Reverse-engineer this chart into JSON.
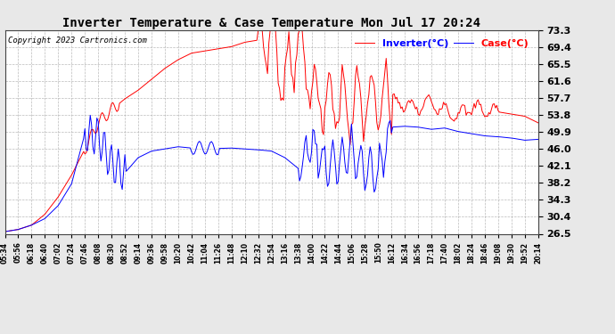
{
  "title": "Inverter Temperature & Case Temperature Mon Jul 17 20:24",
  "copyright": "Copyright 2023 Cartronics.com",
  "legend_case": "Case(°C)",
  "legend_inverter": "Inverter(°C)",
  "case_color": "blue",
  "inverter_color": "red",
  "yticks": [
    26.5,
    30.4,
    34.3,
    38.2,
    42.1,
    46.0,
    49.9,
    53.8,
    57.7,
    61.6,
    65.5,
    69.4,
    73.3
  ],
  "ymin": 26.5,
  "ymax": 73.3,
  "background_color": "#e8e8e8",
  "plot_bg_color": "#ffffff",
  "grid_color": "#aaaaaa",
  "xtick_labels": [
    "05:34",
    "05:56",
    "06:18",
    "06:40",
    "07:02",
    "07:24",
    "07:46",
    "08:08",
    "08:30",
    "08:52",
    "09:14",
    "09:36",
    "09:58",
    "10:20",
    "10:42",
    "11:04",
    "11:26",
    "11:48",
    "12:10",
    "12:32",
    "12:54",
    "13:16",
    "13:38",
    "14:00",
    "14:22",
    "14:44",
    "15:06",
    "15:28",
    "15:50",
    "16:12",
    "16:34",
    "16:56",
    "17:18",
    "17:40",
    "18:02",
    "18:24",
    "18:46",
    "19:08",
    "19:30",
    "19:52",
    "20:14"
  ],
  "inverter_values": [
    27.0,
    27.5,
    28.5,
    31.0,
    35.0,
    40.0,
    46.0,
    52.0,
    55.0,
    57.5,
    59.5,
    62.0,
    64.5,
    66.5,
    68.0,
    68.5,
    69.0,
    69.5,
    70.5,
    71.0,
    73.0,
    60.0,
    73.2,
    59.5,
    56.0,
    57.5,
    55.5,
    57.0,
    56.5,
    57.2,
    56.0,
    55.5,
    56.8,
    55.0,
    53.8,
    55.5,
    55.0,
    54.5,
    54.0,
    53.5,
    52.0
  ],
  "case_values": [
    27.0,
    27.5,
    28.5,
    30.0,
    33.0,
    38.0,
    49.5,
    49.0,
    42.5,
    40.5,
    44.0,
    45.5,
    46.0,
    46.5,
    46.2,
    46.3,
    46.1,
    46.2,
    46.0,
    45.8,
    45.5,
    44.0,
    41.5,
    47.5,
    42.5,
    43.0,
    45.5,
    41.0,
    40.5,
    51.0,
    51.2,
    51.0,
    50.5,
    50.8,
    50.0,
    49.5,
    49.0,
    48.8,
    48.5,
    48.0,
    48.2
  ]
}
